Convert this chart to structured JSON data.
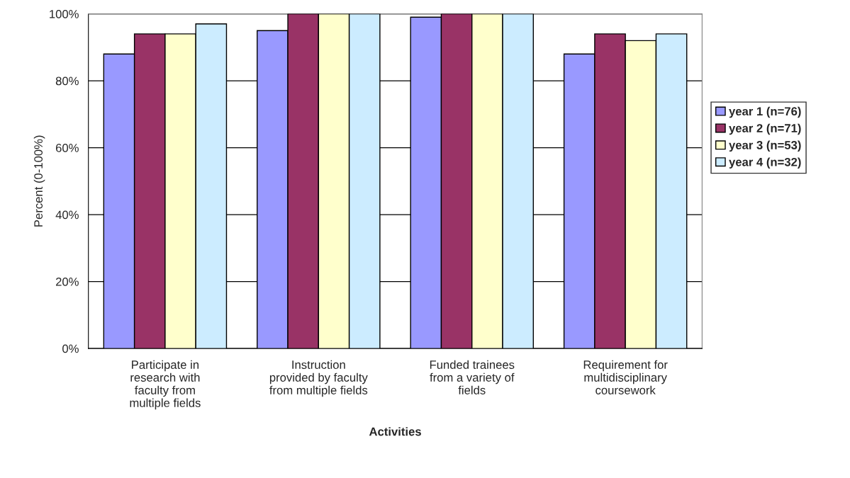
{
  "chart_data": {
    "type": "bar",
    "xlabel": "Activities",
    "ylabel": "Percent (0-100%)",
    "categories": [
      "Participate in\nresearch with\nfaculty from\nmultiple fields",
      "Instruction\nprovided by faculty\nfrom multiple fields",
      "Funded trainees\nfrom a variety of\nfields",
      "Requirement for\nmultidisciplinary\ncoursework"
    ],
    "series": [
      {
        "name": "year 1 (n=76)",
        "color": "#9999ff",
        "values": [
          88,
          95,
          99,
          88
        ]
      },
      {
        "name": "year 2 (n=71)",
        "color": "#993366",
        "values": [
          94,
          100,
          100,
          94
        ]
      },
      {
        "name": "year 3 (n=53)",
        "color": "#ffffcc",
        "values": [
          94,
          100,
          100,
          92
        ]
      },
      {
        "name": "year 4 (n=32)",
        "color": "#ccecff",
        "values": [
          97,
          100,
          100,
          94
        ]
      }
    ],
    "ylim": [
      0,
      100
    ],
    "yticks": [
      {
        "value": 0,
        "label": "0%"
      },
      {
        "value": 20,
        "label": "20%"
      },
      {
        "value": 40,
        "label": "40%"
      },
      {
        "value": 60,
        "label": "60%"
      },
      {
        "value": 80,
        "label": "80%"
      },
      {
        "value": 100,
        "label": "100%"
      }
    ],
    "grid": "y",
    "legend": "right"
  }
}
